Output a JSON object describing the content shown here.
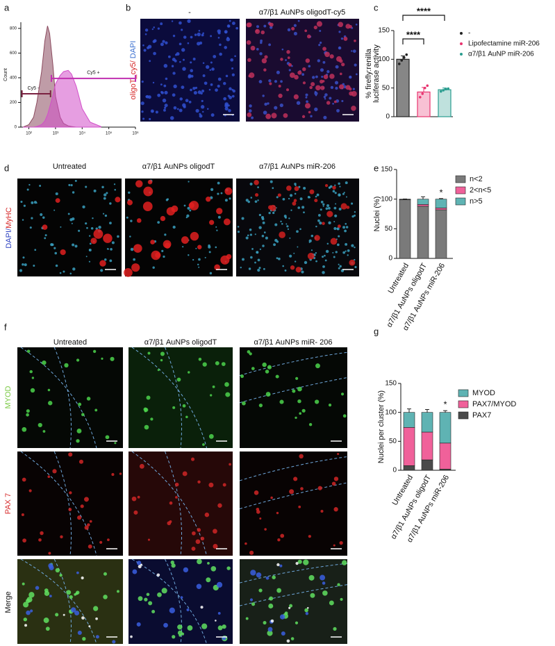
{
  "figure": {
    "panel_labels": [
      "a",
      "b",
      "c",
      "d",
      "e",
      "f",
      "g"
    ],
    "b": {
      "columns": [
        "-",
        "α7/β1 AuNPs oligodT-cy5"
      ],
      "stain": [
        "oligoT_cy5/",
        "DAPI"
      ]
    },
    "d": {
      "columns": [
        "Untreated",
        "α7/β1 AuNPs oligodT",
        "α7/β1 AuNPs miR-206"
      ],
      "stain": [
        "DAPI/",
        "MyHC"
      ]
    },
    "f": {
      "columns": [
        "Untreated",
        "α7/β1 AuNPs oligodT",
        "α7/β1 AuNPs miR- 206"
      ],
      "rows": [
        "MYOD",
        "PAX 7",
        "Merge"
      ]
    }
  },
  "chart_data": [
    {
      "type": "area",
      "y_label": "Count",
      "xlog": true,
      "xlim": [
        50,
        1000000
      ],
      "ylim": [
        0,
        850
      ],
      "xticks": [
        {
          "value": 100,
          "label": "10²"
        },
        {
          "value": 1000,
          "label": "10³"
        },
        {
          "value": 10000,
          "label": "10⁴"
        },
        {
          "value": 100000,
          "label": "10⁵"
        },
        {
          "value": 1000000,
          "label": "10⁶"
        }
      ],
      "yticks": [
        0,
        200,
        400,
        600,
        800
      ],
      "x": [
        60,
        100,
        150,
        200,
        300,
        400,
        500,
        600,
        800,
        1000,
        1500,
        2000,
        3000,
        4000,
        6000,
        10000,
        20000,
        50000
      ],
      "series": [
        {
          "color": "#8b4a5e",
          "values": [
            0,
            20,
            80,
            200,
            450,
            700,
            820,
            760,
            500,
            250,
            80,
            30,
            10,
            5,
            0,
            0,
            0,
            0
          ]
        },
        {
          "color": "#d24fc9",
          "values": [
            0,
            0,
            0,
            5,
            20,
            50,
            100,
            160,
            260,
            350,
            420,
            450,
            460,
            430,
            330,
            150,
            40,
            5
          ]
        }
      ],
      "gates": [
        {
          "label": "Cy5 -",
          "x": [
            55,
            650
          ],
          "y": 270
        },
        {
          "label": "Cy5 +",
          "x": [
            700,
            1000000
          ],
          "y": 395
        }
      ]
    },
    {
      "type": "bar",
      "y_label": [
        "% firefly:renilla",
        "luciferase activity"
      ],
      "categories": [
        "-",
        "Lipofectamine miR-206",
        "α7/β1 AuNP miR-206"
      ],
      "values": [
        100,
        43,
        47
      ],
      "errors": [
        6,
        8,
        3
      ],
      "points": [
        [
          92,
          98,
          103,
          108
        ],
        [
          34,
          40,
          50,
          54
        ],
        [
          44,
          46,
          48,
          49
        ]
      ],
      "colors": [
        "#222222",
        "#e8336f",
        "#2a9d8f"
      ],
      "ylim": [
        0,
        150
      ],
      "yticks": [
        0,
        50,
        100,
        150
      ],
      "significance": [
        "****",
        "****"
      ]
    },
    {
      "type": "stacked_bar",
      "y_label": "Nuclei (%)",
      "categories": [
        "Untreated",
        "α7/β1 AuNPs oligodT",
        "α7/β1 AuNPs miR-206"
      ],
      "series": [
        {
          "name": "n<2",
          "color": "#7a7a7a",
          "values": [
            99,
            88,
            82
          ],
          "errors": [
            0.5,
            3,
            2
          ]
        },
        {
          "name": "2<n<5",
          "color": "#f0619a",
          "values": [
            0.5,
            3,
            3
          ],
          "errors": [
            0.3,
            1,
            1
          ]
        },
        {
          "name": "n>5",
          "color": "#5fb3b3",
          "values": [
            0.5,
            9,
            15
          ],
          "errors": [
            0.3,
            4,
            1
          ]
        }
      ],
      "ylim": [
        0,
        150
      ],
      "yticks": [
        0,
        50,
        100,
        150
      ],
      "significance_label": "*"
    },
    {
      "type": "stacked_bar",
      "y_label": "Nuclei per cluster (%)",
      "legend_order": "reversed",
      "categories": [
        "Untreated",
        "α7/β1 AuNPs oligodT",
        "α7/β1 AuNPs miR-206"
      ],
      "series": [
        {
          "name": "PAX7",
          "color": "#4a4a4a",
          "values": [
            8,
            18,
            2
          ],
          "errors": [
            4,
            13,
            1
          ]
        },
        {
          "name": "PAX7/MYOD",
          "color": "#f0619a",
          "values": [
            66,
            48,
            45
          ],
          "errors": [
            5,
            14,
            2
          ]
        },
        {
          "name": "MYOD",
          "color": "#5fb3b3",
          "values": [
            26,
            34,
            53
          ],
          "errors": [
            6,
            5,
            3
          ]
        }
      ],
      "ylim": [
        0,
        150
      ],
      "yticks": [
        0,
        50,
        100,
        150
      ],
      "significance_label": "*"
    }
  ]
}
